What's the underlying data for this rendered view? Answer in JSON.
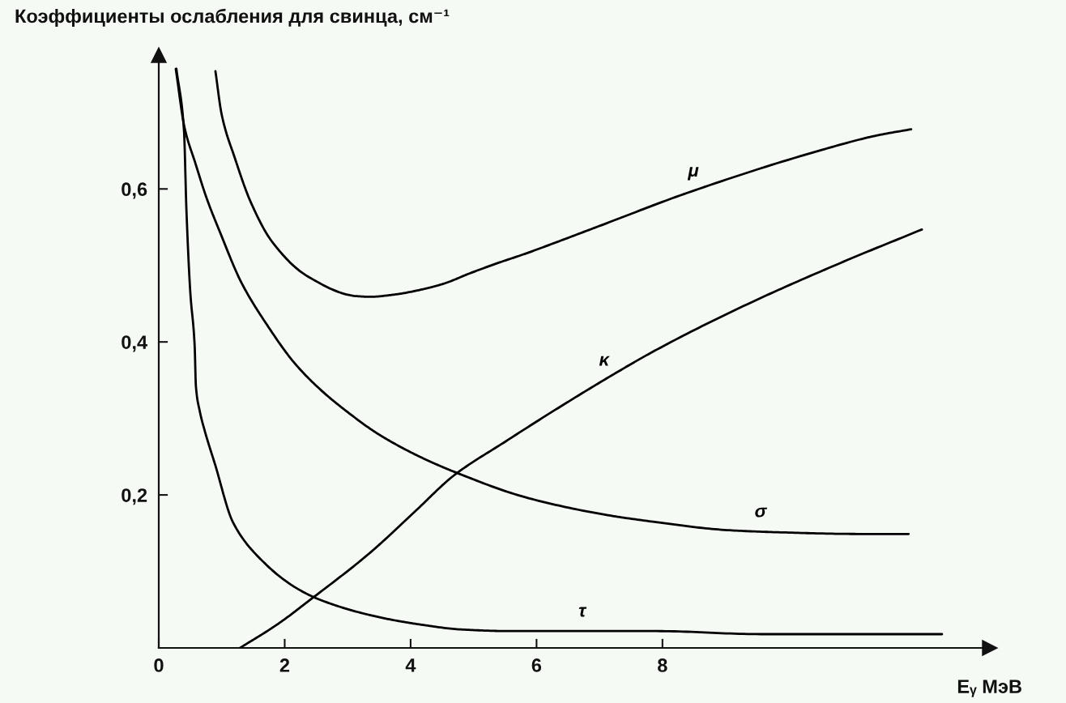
{
  "chart_data": {
    "type": "line",
    "ylabel": "Коэффициенты ослабления для свинца, см⁻¹",
    "xlabel": "Eᵧ МэВ",
    "xlim": [
      0,
      13.2
    ],
    "ylim": [
      0,
      0.775
    ],
    "xticks": [
      0,
      2,
      4,
      6,
      8
    ],
    "yticks": [
      {
        "value": 0.2,
        "label": "0,2"
      },
      {
        "value": 0.4,
        "label": "0,4"
      },
      {
        "value": 0.6,
        "label": "0,6"
      }
    ],
    "line_style": "solid",
    "series": [
      {
        "name": "μ",
        "color": "#000000",
        "x": [
          0.9,
          1.0,
          1.21,
          1.46,
          1.8,
          2.36,
          3.13,
          3.35,
          3.75,
          4.09,
          4.52,
          4.95,
          5.38,
          5.81,
          6.24,
          6.98,
          8.4,
          10.53,
          11.41,
          11.95
        ],
        "values": [
          0.754,
          0.697,
          0.64,
          0.583,
          0.531,
          0.486,
          0.46,
          0.459,
          0.462,
          0.467,
          0.476,
          0.49,
          0.503,
          0.515,
          0.528,
          0.551,
          0.595,
          0.651,
          0.67,
          0.678
        ]
      },
      {
        "name": "κ",
        "color": "#000000",
        "x": [
          1.29,
          1.87,
          2.47,
          3.35,
          4.09,
          4.68,
          5.51,
          6.37,
          7.23,
          7.91,
          9.34,
          10.82,
          12.12
        ],
        "values": [
          0,
          0.03,
          0.067,
          0.124,
          0.18,
          0.225,
          0.27,
          0.315,
          0.358,
          0.39,
          0.449,
          0.503,
          0.547
        ]
      },
      {
        "name": "σ",
        "color": "#000000",
        "x": [
          0.27,
          0.41,
          0.58,
          0.76,
          0.97,
          1.31,
          1.73,
          2.16,
          2.59,
          3.02,
          3.44,
          3.88,
          4.3,
          4.73,
          5.82,
          7.1,
          7.85,
          9.03,
          9.91,
          11.09,
          11.91
        ],
        "values": [
          0.757,
          0.68,
          0.634,
          0.588,
          0.544,
          0.478,
          0.421,
          0.372,
          0.336,
          0.307,
          0.282,
          0.261,
          0.244,
          0.229,
          0.197,
          0.174,
          0.165,
          0.154,
          0.151,
          0.149,
          0.149
        ]
      },
      {
        "name": "τ",
        "color": "#000000",
        "x": [
          0.28,
          0.4,
          0.44,
          0.5,
          0.57,
          0.59,
          0.65,
          0.74,
          0.89,
          1.18,
          1.63,
          2.17,
          2.56,
          3.35,
          4.04,
          4.83,
          5.57,
          7.91,
          9.56,
          12.44
        ],
        "values": [
          0.757,
          0.677,
          0.571,
          0.466,
          0.395,
          0.342,
          0.31,
          0.281,
          0.241,
          0.164,
          0.115,
          0.079,
          0.063,
          0.043,
          0.032,
          0.024,
          0.022,
          0.022,
          0.018,
          0.018
        ]
      }
    ]
  }
}
